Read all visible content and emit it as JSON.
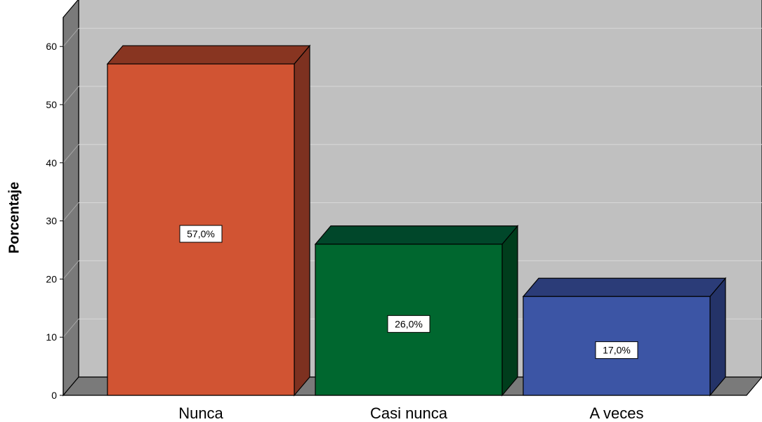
{
  "chart_data": {
    "type": "bar",
    "style": "3d",
    "ylabel": "Porcentaje",
    "xlabel": "",
    "ylim": [
      0,
      65
    ],
    "yticks": [
      0,
      10,
      20,
      30,
      40,
      50,
      60
    ],
    "grid": true,
    "categories": [
      "Nunca",
      "Casi nunca",
      "A veces"
    ],
    "values": [
      57.0,
      26.0,
      17.0
    ],
    "data_labels": [
      "57,0%",
      "26,0%",
      "17,0%"
    ],
    "colors": [
      "#d15433",
      "#00672f",
      "#3c55a5"
    ],
    "side_colors": [
      "#7d3120",
      "#003d1c",
      "#243368"
    ],
    "top_colors": [
      "#883521",
      "#00472a",
      "#2b3c78"
    ],
    "background_color": "#c0c0c0"
  }
}
